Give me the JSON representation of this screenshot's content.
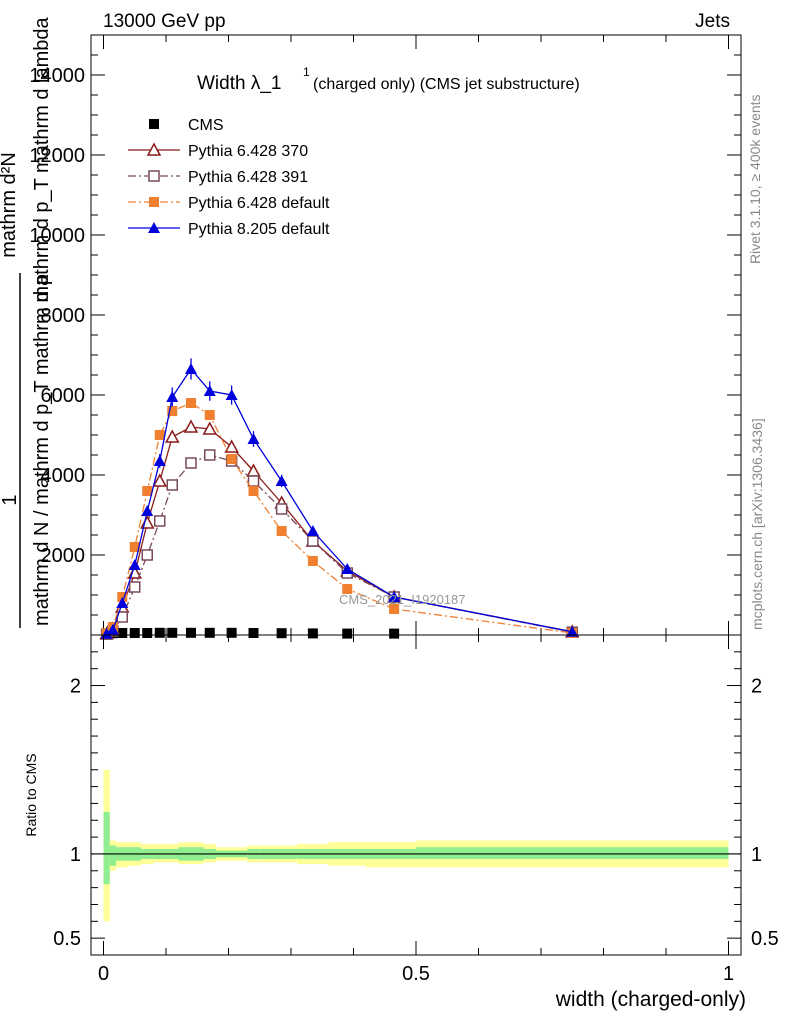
{
  "header": {
    "left": "13000 GeV pp",
    "right": "Jets",
    "side_rivet": "Rivet 3.1.10, ≥ 400k events",
    "side_mcplots": "mcplots.cern.ch [arXiv:1306.3436]"
  },
  "chart_data": {
    "type": "line",
    "title_main": "Width λ_1",
    "title_sup": "1",
    "title_rest": "(charged only) (CMS jet substructure)",
    "ylabel_top": "1",
    "ylabel_num": "mathrm d²N",
    "ylabel_den_line1": "mathrm d N / mathrm d p_T mathrm d p",
    "ylabel_den_line2": "mathrm d p_T mathrm d lambda",
    "xlabel": "width (charged-only)",
    "watermark": "CMS_2021_I1920187",
    "xlim": [
      -0.02,
      1.02
    ],
    "ylim": [
      0,
      15000
    ],
    "x_ticks": [
      "0",
      "0.5",
      "1"
    ],
    "y_ticks": [
      "2000",
      "4000",
      "6000",
      "8000",
      "10000",
      "12000",
      "14000"
    ],
    "series": [
      {
        "name": "CMS",
        "color": "#000000",
        "marker": "square-filled",
        "x": [
          0.005,
          0.015,
          0.03,
          0.05,
          0.07,
          0.09,
          0.11,
          0.14,
          0.17,
          0.205,
          0.24,
          0.285,
          0.335,
          0.39,
          0.465
        ],
        "values": [
          40,
          45,
          50,
          50,
          50,
          55,
          55,
          55,
          55,
          55,
          50,
          45,
          40,
          35,
          35
        ]
      },
      {
        "name": "Pythia 6.428 370",
        "color": "#8b1a1a",
        "marker": "triangle-open",
        "x": [
          0.005,
          0.015,
          0.03,
          0.05,
          0.07,
          0.09,
          0.11,
          0.14,
          0.17,
          0.205,
          0.24,
          0.285,
          0.335,
          0.39,
          0.465,
          0.75
        ],
        "values": [
          30,
          150,
          700,
          1550,
          2800,
          3850,
          4950,
          5200,
          5150,
          4700,
          4100,
          3300,
          2350,
          1600,
          950,
          80
        ]
      },
      {
        "name": "Pythia 6.428 391",
        "color": "#7a4a5a",
        "marker": "square-open",
        "x": [
          0.005,
          0.015,
          0.03,
          0.05,
          0.07,
          0.09,
          0.11,
          0.14,
          0.17,
          0.205,
          0.24,
          0.285,
          0.335,
          0.39,
          0.465,
          0.75
        ],
        "values": [
          20,
          100,
          450,
          1200,
          2000,
          2850,
          3750,
          4300,
          4500,
          4350,
          3850,
          3150,
          2350,
          1550,
          950,
          70
        ]
      },
      {
        "name": "Pythia 6.428 default",
        "color": "#f08030",
        "marker": "square-filled",
        "x": [
          0.005,
          0.015,
          0.03,
          0.05,
          0.07,
          0.09,
          0.11,
          0.14,
          0.17,
          0.205,
          0.24,
          0.285,
          0.335,
          0.39,
          0.465,
          0.75
        ],
        "values": [
          40,
          200,
          950,
          2200,
          3600,
          5000,
          5600,
          5800,
          5500,
          4400,
          3600,
          2600,
          1850,
          1150,
          650,
          50
        ]
      },
      {
        "name": "Pythia 8.205 default",
        "color": "#0000dd",
        "marker": "triangle-filled",
        "x": [
          0.005,
          0.015,
          0.03,
          0.05,
          0.07,
          0.09,
          0.11,
          0.14,
          0.17,
          0.205,
          0.24,
          0.285,
          0.335,
          0.39,
          0.465,
          0.75
        ],
        "values": [
          30,
          130,
          800,
          1750,
          3100,
          4350,
          5950,
          6650,
          6100,
          6000,
          4900,
          3850,
          2600,
          1650,
          950,
          80
        ]
      }
    ],
    "ratio": {
      "ylabel": "Ratio to CMS",
      "ylim": [
        0.4,
        2.3
      ],
      "y_ticks": [
        "0.5",
        "1",
        "2"
      ],
      "bins": [
        0.0,
        0.01,
        0.02,
        0.04,
        0.06,
        0.08,
        0.1,
        0.12,
        0.16,
        0.18,
        0.23,
        0.25,
        0.31,
        0.36,
        0.42,
        0.5,
        1.0
      ],
      "stat_lo": [
        0.82,
        0.93,
        0.96,
        0.96,
        0.97,
        0.97,
        0.97,
        0.96,
        0.97,
        0.98,
        0.97,
        0.97,
        0.97,
        0.97,
        0.97,
        0.97
      ],
      "stat_hi": [
        1.25,
        1.05,
        1.04,
        1.04,
        1.03,
        1.03,
        1.03,
        1.04,
        1.03,
        1.02,
        1.03,
        1.03,
        1.03,
        1.03,
        1.03,
        1.04
      ],
      "tot_lo": [
        0.6,
        0.9,
        0.92,
        0.93,
        0.94,
        0.95,
        0.95,
        0.94,
        0.95,
        0.96,
        0.95,
        0.95,
        0.94,
        0.93,
        0.92,
        0.92
      ],
      "tot_hi": [
        1.5,
        1.08,
        1.07,
        1.07,
        1.06,
        1.06,
        1.06,
        1.07,
        1.06,
        1.04,
        1.05,
        1.05,
        1.06,
        1.07,
        1.07,
        1.08
      ]
    }
  }
}
